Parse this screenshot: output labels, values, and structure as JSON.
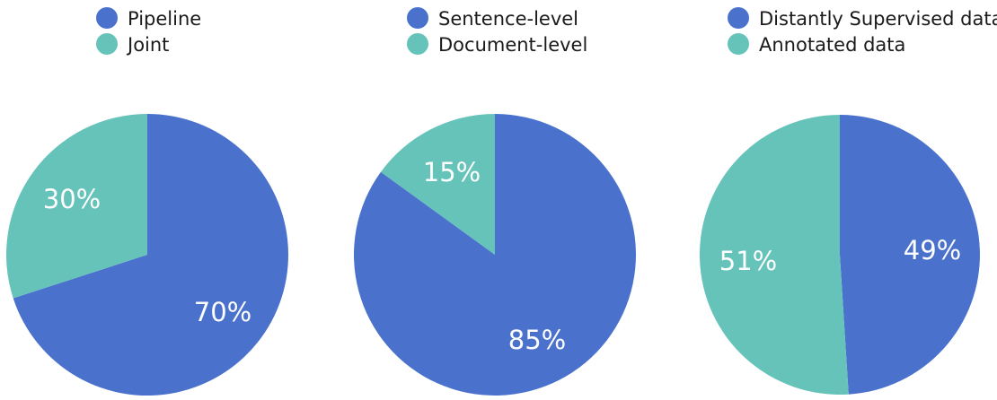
{
  "chart_data": [
    {
      "type": "pie",
      "title": "",
      "slices": [
        {
          "label": "Pipeline",
          "value": 70,
          "value_label": "70%",
          "color": "#4a72cd"
        },
        {
          "label": "Joint",
          "value": 30,
          "value_label": "30%",
          "color": "#66c3b9"
        }
      ],
      "legend_position": "top"
    },
    {
      "type": "pie",
      "title": "",
      "slices": [
        {
          "label": "Sentence-level",
          "value": 85,
          "value_label": "85%",
          "color": "#4a72cd"
        },
        {
          "label": "Document-level",
          "value": 15,
          "value_label": "15%",
          "color": "#66c3b9"
        }
      ],
      "legend_position": "top"
    },
    {
      "type": "pie",
      "title": "",
      "slices": [
        {
          "label": "Distantly Supervised data",
          "value": 49,
          "value_label": "49%",
          "color": "#4a72cd"
        },
        {
          "label": "Annotated data",
          "value": 51,
          "value_label": "51%",
          "color": "#66c3b9"
        }
      ],
      "legend_position": "top"
    }
  ]
}
